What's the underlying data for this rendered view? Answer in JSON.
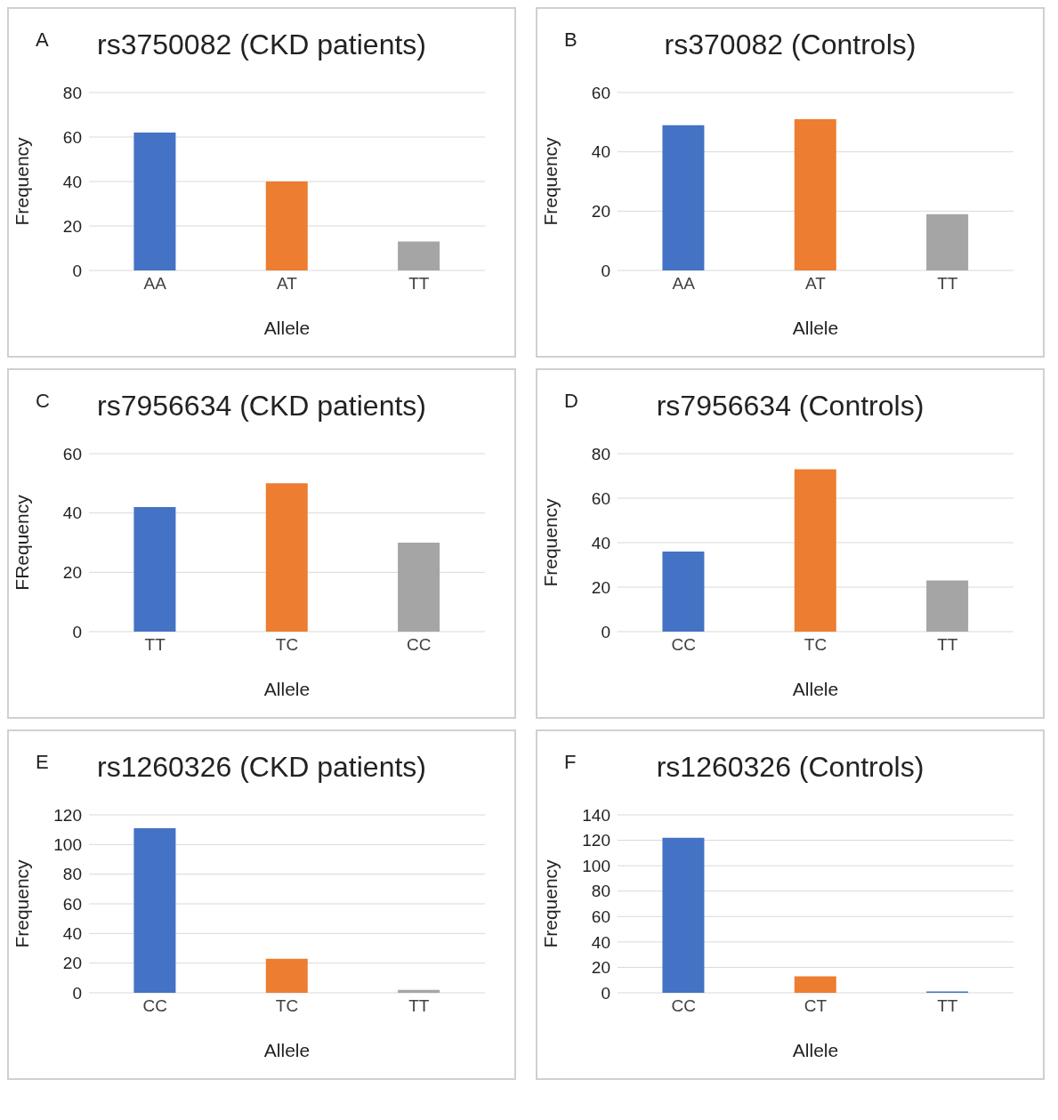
{
  "chart_data": [
    {
      "type": "bar",
      "title": "rs3750082 (CKD patients)",
      "annotations": [
        "A"
      ],
      "xlabel": "Allele",
      "ylabel": "Frequency",
      "categories": [
        "AA",
        "AT",
        "TT"
      ],
      "values": [
        62,
        40,
        13
      ],
      "colors": [
        "#4472c4",
        "#ed7d31",
        "#a5a5a5"
      ],
      "ylim": [
        0,
        80
      ],
      "yticks": [
        0,
        20,
        40,
        60,
        80
      ],
      "grid": "y"
    },
    {
      "type": "bar",
      "title": "rs370082 (Controls)",
      "annotations": [
        "B"
      ],
      "xlabel": "Allele",
      "ylabel": "Frequency",
      "categories": [
        "AA",
        "AT",
        "TT"
      ],
      "values": [
        49,
        51,
        19
      ],
      "colors": [
        "#4472c4",
        "#ed7d31",
        "#a5a5a5"
      ],
      "ylim": [
        0,
        60
      ],
      "yticks": [
        0,
        20,
        40,
        60
      ],
      "grid": "y"
    },
    {
      "type": "bar",
      "title": "rs7956634 (CKD patients)",
      "annotations": [
        "C"
      ],
      "xlabel": "Allele",
      "ylabel": "FRequency",
      "categories": [
        "TT",
        "TC",
        "CC"
      ],
      "values": [
        42,
        50,
        30
      ],
      "colors": [
        "#4472c4",
        "#ed7d31",
        "#a5a5a5"
      ],
      "ylim": [
        0,
        60
      ],
      "yticks": [
        0,
        20,
        40,
        60
      ],
      "grid": "y"
    },
    {
      "type": "bar",
      "title": "rs7956634 (Controls)",
      "annotations": [
        "D"
      ],
      "xlabel": "Allele",
      "ylabel": "Frequency",
      "categories": [
        "CC",
        "TC",
        "TT"
      ],
      "values": [
        36,
        73,
        23
      ],
      "colors": [
        "#4472c4",
        "#ed7d31",
        "#a5a5a5"
      ],
      "ylim": [
        0,
        80
      ],
      "yticks": [
        0,
        20,
        40,
        60,
        80
      ],
      "grid": "y"
    },
    {
      "type": "bar",
      "title": "rs1260326 (CKD patients)",
      "annotations": [
        "E"
      ],
      "xlabel": "Allele",
      "ylabel": "Frequency",
      "categories": [
        "CC",
        "TC",
        "TT"
      ],
      "values": [
        111,
        23,
        2
      ],
      "colors": [
        "#4472c4",
        "#ed7d31",
        "#a5a5a5"
      ],
      "ylim": [
        0,
        120
      ],
      "yticks": [
        0,
        20,
        40,
        60,
        80,
        100,
        120
      ],
      "grid": "y"
    },
    {
      "type": "bar",
      "title": "rs1260326 (Controls)",
      "annotations": [
        "F"
      ],
      "xlabel": "Allele",
      "ylabel": "Frequency",
      "categories": [
        "CC",
        "CT",
        "TT"
      ],
      "values": [
        122,
        13,
        1
      ],
      "colors": [
        "#4472c4",
        "#ed7d31",
        "#4472c4"
      ],
      "ylim": [
        0,
        140
      ],
      "yticks": [
        0,
        20,
        40,
        60,
        80,
        100,
        120,
        140
      ],
      "grid": "y"
    }
  ]
}
